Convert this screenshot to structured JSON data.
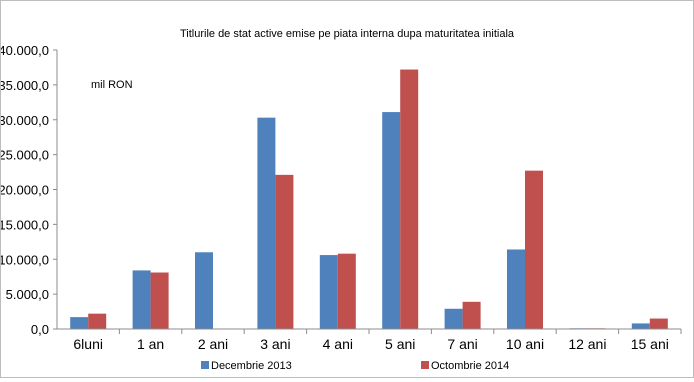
{
  "chart_data": {
    "type": "bar",
    "title": "Titlurile de stat active emise pe piata interna dupa maturitatea initiala",
    "unit_label": "mil RON",
    "categories": [
      "6luni",
      "1 an",
      "2 ani",
      "3 ani",
      "4 ani",
      "5 ani",
      "7 ani",
      "10 ani",
      "12 ani",
      "15 ani"
    ],
    "series": [
      {
        "name": "Decembrie 2013",
        "color": "#4F81BD",
        "values": [
          1700,
          8400,
          11000,
          30300,
          10600,
          31100,
          2900,
          11400,
          100,
          800
        ]
      },
      {
        "name": "Octombrie 2014",
        "color": "#C0504D",
        "values": [
          2200,
          8100,
          0,
          22100,
          10800,
          37200,
          3900,
          22700,
          100,
          1500
        ]
      }
    ],
    "ylim": [
      0,
      40000
    ],
    "yticks": [
      "0,0",
      "5.000,0",
      "10.000,0",
      "15.000,0",
      "20.000,0",
      "25.000,0",
      "30.000,0",
      "35.000,0",
      "40.000,0"
    ],
    "legend_position": "bottom",
    "grid": false
  }
}
